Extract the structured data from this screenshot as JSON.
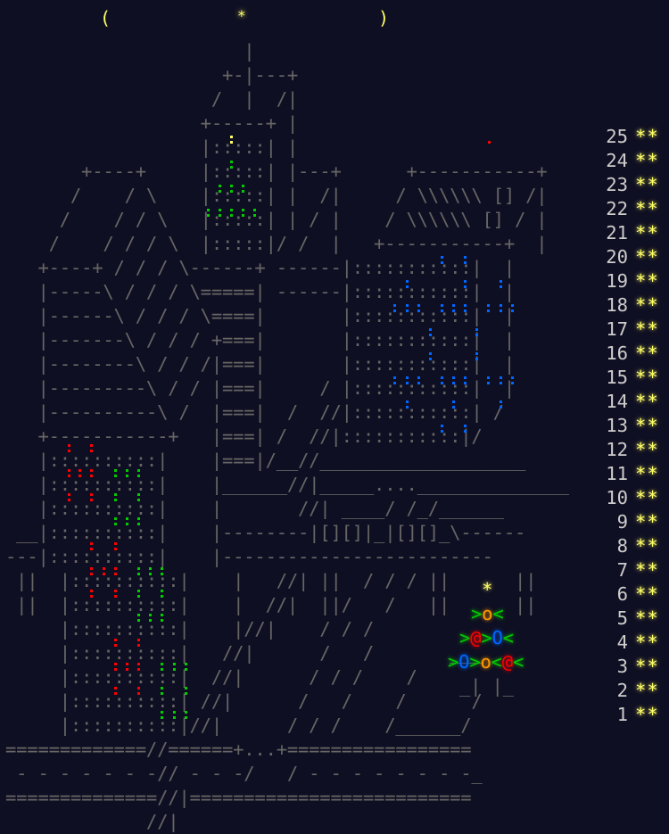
{
  "sky": {
    "moon_left": "(",
    "moon_right": ")",
    "top_star": "*"
  },
  "art_lines": [
    "",
    "                      |",
    "                    +-|---+",
    "                   /  |  /|",
    "                  +-----+ |",
    "                  |:::::| |",
    "       +----+     |:::::| |---+      +-----------+",
    "      /    / \\    |:::::| |  /|     / \\\\\\\\\\\\ [] /|",
    "     /    / / \\   |:::::| | / |    / \\\\\\\\\\\\ [] / |",
    "    /    / / / \\  |:::::|/ /  |   +-----------+  |",
    "   +----+ / / / \\------+ ------|:::::::::::|  |",
    "   |-----\\ / / / \\=====| ------|:::::::::::|  |",
    "   |------\\ / / / \\====|       |:::::::::::|  |",
    "   |-------\\ / / / +===|       |:::::::::::|  |",
    "   |--------\\ / / /|===|       |:::::::::::|  |",
    "   |---------\\ / / |===|     / |:::::::::::|  |",
    "   |----------\\ /  |===|  /  //|:::::::::::| /",
    "   +-----------+   |===| /  //|:::::::::::|/",
    "   |::::::::::|    |===|/__//___________________",
    "   |::::::::::|    |______//|_____....______________",
    "   |::::::::::|    |       //| ____/ /_/______",
    " __|::::::::::|    |--------|[][]|_|[][]_\\------",
    "---|::::::::::|    |-------------------------",
    " ||  |::::::::::|    |   //| ||  / / / ||      ||",
    " ||  |::::::::::|    |  //|  ||/   /   ||      ||",
    "     |::::::::::|    |//|    / / /",
    "     |::::::::::|   //|      /   /       ___",
    "     |::::::::::|  //|      / / /    /",
    "     |::::::::::| //|      /   /    /      /",
    "     |::::::::::|//|      / / /    /______/",
    "=============//======+...+=================",
    " - - - - - - -// - - -/   / - - - - - - - -_",
    "==============//|==========================",
    "             //|"
  ],
  "days": [
    {
      "day": "25",
      "stars": "**"
    },
    {
      "day": "24",
      "stars": "**"
    },
    {
      "day": "23",
      "stars": "**"
    },
    {
      "day": "22",
      "stars": "**"
    },
    {
      "day": "21",
      "stars": "**"
    },
    {
      "day": "20",
      "stars": "**"
    },
    {
      "day": "19",
      "stars": "**"
    },
    {
      "day": "18",
      "stars": "**"
    },
    {
      "day": "17",
      "stars": "**"
    },
    {
      "day": "16",
      "stars": "**"
    },
    {
      "day": "15",
      "stars": "**"
    },
    {
      "day": "14",
      "stars": "**"
    },
    {
      "day": "13",
      "stars": "**"
    },
    {
      "day": "12",
      "stars": "**"
    },
    {
      "day": "11",
      "stars": "**"
    },
    {
      "day": "10",
      "stars": "**"
    },
    {
      "day": "9",
      "stars": "**"
    },
    {
      "day": "8",
      "stars": "**"
    },
    {
      "day": "7",
      "stars": "**"
    },
    {
      "day": "6",
      "stars": "**"
    },
    {
      "day": "5",
      "stars": "**"
    },
    {
      "day": "4",
      "stars": "**"
    },
    {
      "day": "3",
      "stars": "**"
    },
    {
      "day": "2",
      "stars": "**"
    },
    {
      "day": "1",
      "stars": "**"
    }
  ],
  "tree": {
    "top": "*",
    "row1": ">o<",
    "row2": ">@>O<",
    "row3": ">O>o<@<",
    "trunk": "_| |_"
  },
  "colors": {
    "background": "#0f0f23",
    "gold": "#ffff66",
    "red": "#ff0000",
    "green": "#00cc00",
    "blue": "#0066ff",
    "orange": "#ff9900",
    "gray": "#666666"
  }
}
